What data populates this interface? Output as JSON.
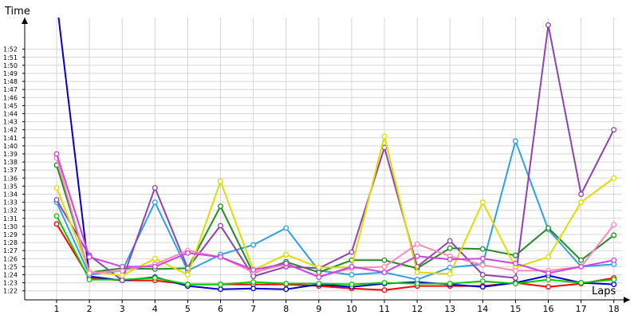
{
  "chart_data": {
    "type": "line",
    "ylabel": "Time",
    "xlabel": "Laps",
    "x": [
      1,
      2,
      3,
      4,
      5,
      6,
      7,
      8,
      9,
      10,
      11,
      12,
      13,
      14,
      15,
      16,
      17,
      18
    ],
    "ylim": [
      "1:21",
      "1:53"
    ],
    "y_ticks": [
      "1:22",
      "1:23",
      "1:24",
      "1:25",
      "1:26",
      "1:27",
      "1:28",
      "1:29",
      "1:30",
      "1:31",
      "1:32",
      "1:33",
      "1:34",
      "1:35",
      "1:36",
      "1:37",
      "1:38",
      "1:39",
      "1:40",
      "1:41",
      "1:42",
      "1:43",
      "1:44",
      "1:45",
      "1:46",
      "1:47",
      "1:48",
      "1:49",
      "1:50",
      "1:51",
      "1:52"
    ],
    "x_ticks": [
      "1",
      "2",
      "3",
      "4",
      "5",
      "6",
      "7",
      "8",
      "9",
      "10",
      "11",
      "12",
      "13",
      "14",
      "15",
      "16",
      "17",
      "18"
    ],
    "grid": true,
    "series": [
      {
        "color": "#ff0000",
        "values": [
          "1:30.3",
          "1:23.6",
          "1:23.3",
          "1:23.3",
          "1:22.8",
          "1:22.8",
          "1:22.8",
          "1:22.8",
          "1:22.6",
          "1:22.3",
          "1:22.1",
          "1:22.6",
          "1:22.6",
          "1:22.6",
          "1:23.0",
          "1:22.5",
          "1:22.9",
          "1:23.6"
        ]
      },
      {
        "color": "#0000cc",
        "values": [
          "1:58.0",
          "1:23.8",
          "1:23.3",
          "1:23.7",
          "1:22.6",
          "1:22.2",
          "1:22.3",
          "1:22.2",
          "1:22.8",
          "1:22.5",
          "1:22.9",
          "1:23.1",
          "1:22.8",
          "1:22.5",
          "1:23.0",
          "1:23.9",
          "1:23.0",
          "1:22.8"
        ]
      },
      {
        "color": "#00cc00",
        "values": [
          "1:31.3",
          "1:23.4",
          "1:23.4",
          "1:23.6",
          "1:22.8",
          "1:22.8",
          "1:23.1",
          "1:22.9",
          "1:22.9",
          "1:22.8",
          "1:23.0",
          "1:22.9",
          "1:22.9",
          "1:23.2",
          "1:22.9",
          "1:23.4",
          "1:23.0",
          "1:23.4"
        ]
      },
      {
        "color": "#2ea0e6",
        "values": [
          "1:33.0",
          "1:24.0",
          "1:24.5",
          "1:33.0",
          "1:24.5",
          "1:26.5",
          "1:27.7",
          "1:29.8",
          "1:24.5",
          "1:24.0",
          "1:24.3",
          "1:23.4",
          "1:24.9",
          "1:25.3",
          "1:40.6",
          "1:29.6",
          "1:25.0",
          "1:25.3"
        ]
      },
      {
        "color": "#228b22",
        "values": [
          "1:37.6",
          "1:24.3",
          "1:24.8",
          "1:24.7",
          "1:24.8",
          "1:32.5",
          "1:24.2",
          "1:25.6",
          "1:24.3",
          "1:25.8",
          "1:25.8",
          "1:24.8",
          "1:27.3",
          "1:27.2",
          "1:26.4",
          "1:29.8",
          "1:25.8",
          "1:28.9"
        ]
      },
      {
        "color": "#8e44ad",
        "values": [
          "1:33.3",
          "1:26.4",
          "1:23.3",
          "1:34.8",
          "1:24.8",
          "1:30.1",
          "1:23.8",
          "1:25.0",
          "1:24.8",
          "1:26.8",
          "1:39.8",
          "1:25.0",
          "1:28.2",
          "1:24.0",
          "1:23.6",
          "1:55.0",
          "1:34.0",
          "1:42.0"
        ]
      },
      {
        "color": "#dddd00",
        "values": [
          "1:34.8",
          "1:24.4",
          "1:23.9",
          "1:26.0",
          "1:24.0",
          "1:35.6",
          "1:24.6",
          "1:26.5",
          "1:24.9",
          "1:24.9",
          "1:41.2",
          "1:24.3",
          "1:24.1",
          "1:33.0",
          "1:24.9",
          "1:26.2",
          "1:33.0",
          "1:36.0"
        ]
      },
      {
        "color": "#ff88bb",
        "values": [
          "1:38.5",
          "1:24.2",
          "1:24.5",
          "1:25.3",
          "1:27.0",
          "1:26.2",
          "1:24.3",
          "1:25.3",
          "1:23.8",
          "1:24.8",
          "1:25.0",
          "1:27.8",
          "1:26.3",
          "1:25.2",
          "1:24.5",
          "1:24.5",
          "1:25.0",
          "1:30.2"
        ]
      },
      {
        "color": "#cc44dd",
        "values": [
          "1:39.0",
          "1:26.2",
          "1:25.0",
          "1:25.0",
          "1:26.7",
          "1:26.2",
          "1:24.6",
          "1:25.4",
          "1:23.7",
          "1:25.0",
          "1:24.3",
          "1:26.3",
          "1:25.9",
          "1:26.0",
          "1:25.4",
          "1:24.2",
          "1:25.0",
          "1:25.8"
        ]
      }
    ]
  }
}
